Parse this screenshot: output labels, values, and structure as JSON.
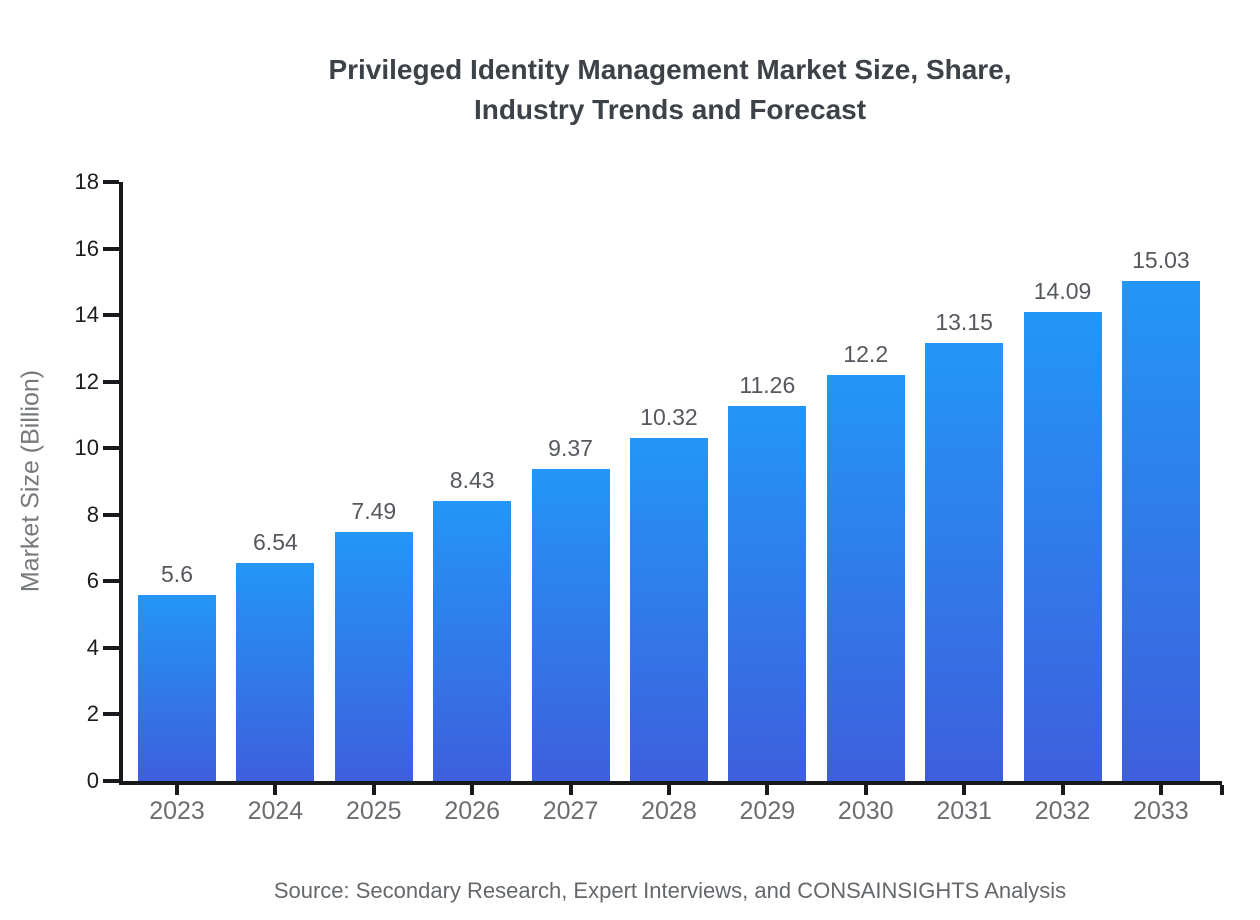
{
  "title": "Privileged Identity Management Market Size, Share,\nIndustry Trends and Forecast",
  "source_note": "Source: Secondary Research, Expert Interviews, and CONSAINSIGHTS Analysis",
  "chart_data": {
    "type": "bar",
    "title": "Privileged Identity Management Market Size, Share, Industry Trends and Forecast",
    "categories": [
      "2023",
      "2024",
      "2025",
      "2026",
      "2027",
      "2028",
      "2029",
      "2030",
      "2031",
      "2032",
      "2033"
    ],
    "values": [
      5.6,
      6.54,
      7.49,
      8.43,
      9.37,
      10.32,
      11.26,
      12.2,
      13.15,
      14.09,
      15.03
    ],
    "xlabel": "",
    "ylabel": "Market Size (Billion)",
    "ylim": [
      0,
      18
    ],
    "yticks": [
      0,
      2,
      4,
      6,
      8,
      10,
      12,
      14,
      16,
      18
    ],
    "grid": false,
    "legend": false,
    "bar_gradient_top": "#2396f7",
    "bar_gradient_bottom": "#3e5fdd"
  },
  "colors": {
    "background": "#ffffff",
    "title": "#3d4148",
    "axis": "#17191c",
    "value_label": "#55585e",
    "x_tick_label": "#6a6d71",
    "y_tick_label": "#1a1c1f",
    "y_axis_title": "#76797d",
    "source": "#64686c"
  }
}
